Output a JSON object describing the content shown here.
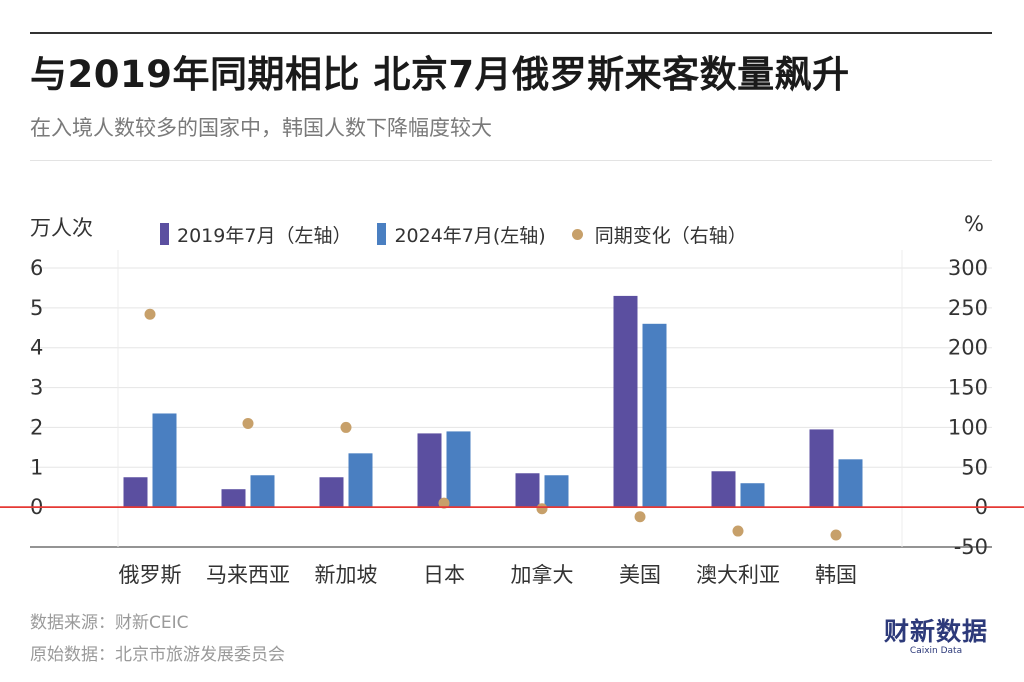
{
  "header": {
    "title": "与2019年同期相比 北京7月俄罗斯来客数量飙升",
    "subtitle": "在入境人数较多的国家中，韩国人数下降幅度较大"
  },
  "units": {
    "left": "万人次",
    "right": "%"
  },
  "legend": [
    {
      "label": "2019年7月（左轴）",
      "color": "#5b4fa0",
      "kind": "bar"
    },
    {
      "label": "2024年7月(左轴)",
      "color": "#4a7fc1",
      "kind": "bar"
    },
    {
      "label": "同期变化（右轴）",
      "color": "#c7a06a",
      "kind": "dot"
    }
  ],
  "chart_data": {
    "type": "bar",
    "categories": [
      "俄罗斯",
      "马来西亚",
      "新加坡",
      "日本",
      "加拿大",
      "美国",
      "澳大利亚",
      "韩国"
    ],
    "series": [
      {
        "name": "2019年7月（左轴）",
        "axis": "left",
        "values": [
          0.75,
          0.45,
          0.75,
          1.85,
          0.85,
          5.3,
          0.9,
          1.95
        ]
      },
      {
        "name": "2024年7月(左轴)",
        "axis": "left",
        "values": [
          2.35,
          0.8,
          1.35,
          1.9,
          0.8,
          4.6,
          0.6,
          1.2
        ]
      },
      {
        "name": "同期变化（右轴）",
        "axis": "right",
        "type": "scatter",
        "values": [
          242,
          105,
          100,
          5,
          -2,
          -12,
          -30,
          -35
        ]
      }
    ],
    "left_axis": {
      "ticks": [
        "6",
        "5",
        "4",
        "3",
        "2",
        "1",
        "0"
      ],
      "ylim": [
        -1,
        6
      ]
    },
    "right_axis": {
      "ticks": [
        "300",
        "250",
        "200",
        "150",
        "100",
        "50",
        "0",
        "-50"
      ],
      "ylim": [
        -50,
        300
      ]
    },
    "reference_line": {
      "left_value": 0,
      "color": "#e53935"
    },
    "colors": {
      "bar_2019": "#5b4fa0",
      "bar_2024": "#4a7fc1",
      "dot": "#c7a06a",
      "grid": "#e5e5e5"
    },
    "grid": true
  },
  "footer": {
    "source": "数据来源：财新CEIC",
    "original": "原始数据：北京市旅游发展委员会"
  },
  "logo": {
    "main": "财新数据",
    "sub": "Caixin Data"
  }
}
